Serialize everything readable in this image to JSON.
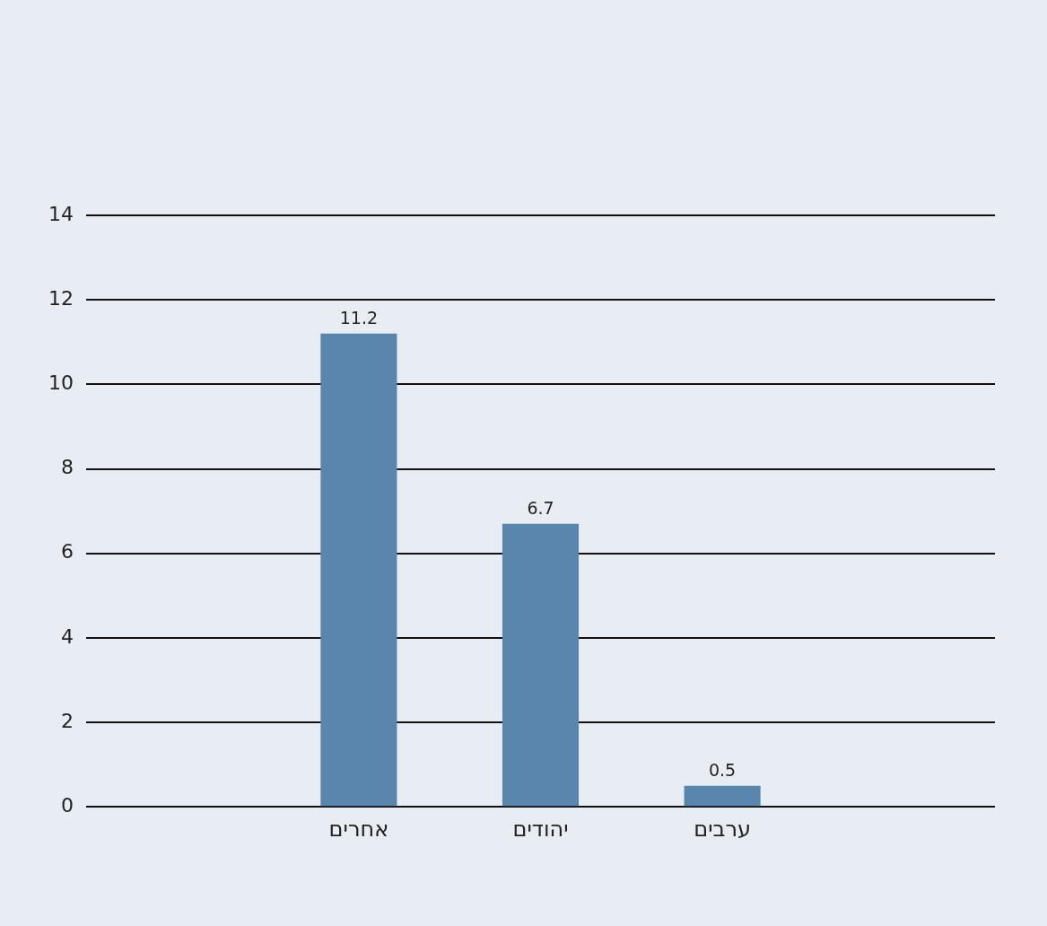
{
  "chart_data": {
    "type": "bar",
    "categories": [
      null,
      "אחרים",
      "יהודים",
      "ערבים",
      null
    ],
    "values": [
      null,
      11.2,
      6.7,
      0.5,
      null
    ],
    "color": "#5a85ad",
    "ylim": [
      0,
      14
    ],
    "yticks": [
      0,
      2,
      4,
      6,
      8,
      10,
      12,
      14
    ],
    "grid": "y",
    "data_labels": true
  }
}
